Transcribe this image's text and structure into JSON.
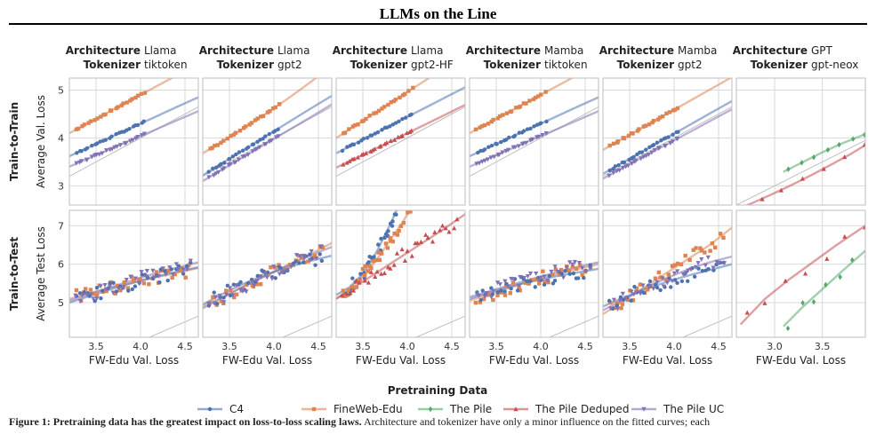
{
  "figure_title": "LLMs on the Line",
  "caption": {
    "lead": "Figure 1: Pretraining data has the greatest impact on loss-to-loss scaling laws.",
    "rest": "Architecture and tokenizer have only a minor influence on the fitted curves; each"
  },
  "colors": {
    "C4": "#4c72b0",
    "FineWeb-Edu": "#dd8452",
    "The Pile": "#55a868",
    "The Pile Deduped": "#c44e52",
    "The Pile UC": "#8172b3",
    "diagonal": "#b8b8b8",
    "panel_border": "#bdbdbd",
    "grid": "#d9d9d9"
  },
  "chart_data": {
    "type": "scatter",
    "facet_labels": {
      "architecture": "Architecture",
      "tokenizer": "Tokenizer"
    },
    "columns": [
      {
        "architecture": "Llama",
        "tokenizer": "tiktoken"
      },
      {
        "architecture": "Llama",
        "tokenizer": "gpt2"
      },
      {
        "architecture": "Llama",
        "tokenizer": "gpt2-HF"
      },
      {
        "architecture": "Mamba",
        "tokenizer": "tiktoken"
      },
      {
        "architecture": "Mamba",
        "tokenizer": "gpt2"
      },
      {
        "architecture": "GPT",
        "tokenizer": "gpt-neox"
      }
    ],
    "rows": [
      {
        "label": "Train-to-Train",
        "ylabel": "Average Val. Loss",
        "ylim": [
          2.6,
          5.25
        ],
        "yticks": [
          3,
          4,
          5
        ]
      },
      {
        "label": "Train-to-Test",
        "ylabel": "Average Test Loss",
        "ylim": [
          4.1,
          7.4
        ],
        "yticks": [
          5,
          6,
          7
        ]
      }
    ],
    "xlabel": "FW-Edu Val. Loss",
    "xlim_main": [
      3.2,
      4.65
    ],
    "xticks_main": [
      3.5,
      4.0,
      4.5
    ],
    "xlim_gpt": [
      2.6,
      3.95
    ],
    "xticks_gpt": [
      3.0,
      3.5
    ],
    "legend": {
      "title": "Pretraining Data",
      "position": "bottom",
      "entries": [
        "C4",
        "FineWeb-Edu",
        "The Pile",
        "The Pile Deduped",
        "The Pile UC"
      ]
    },
    "series_markers": {
      "C4": "circle",
      "FineWeb-Edu": "square",
      "The Pile": "diamond",
      "The Pile Deduped": "triangle-up",
      "The Pile UC": "triangle-down"
    },
    "fits": [
      [
        [
          {
            "name": "FineWeb-Edu",
            "x": [
              3.2,
              3.4,
              3.6,
              3.8,
              4.0,
              4.2,
              4.4,
              4.65
            ],
            "y": [
              4.1,
              4.3,
              4.5,
              4.7,
              4.9,
              5.1,
              5.3,
              5.55
            ]
          },
          {
            "name": "C4",
            "x": [
              3.2,
              3.4,
              3.6,
              3.8,
              4.0,
              4.2,
              4.4,
              4.65
            ],
            "y": [
              3.62,
              3.79,
              3.96,
              4.13,
              4.3,
              4.47,
              4.64,
              4.85
            ]
          },
          {
            "name": "The Pile UC",
            "x": [
              3.2,
              3.4,
              3.6,
              3.8,
              4.0,
              4.2,
              4.4,
              4.65
            ],
            "y": [
              3.4,
              3.56,
              3.72,
              3.88,
              4.04,
              4.2,
              4.36,
              4.56
            ]
          }
        ],
        [
          {
            "name": "FineWeb-Edu",
            "x": [
              3.2,
              3.4,
              3.6,
              3.8,
              4.0,
              4.2,
              4.4,
              4.65
            ],
            "y": [
              3.68,
              3.9,
              4.13,
              4.37,
              4.62,
              4.88,
              5.15,
              5.5
            ]
          },
          {
            "name": "C4",
            "x": [
              3.2,
              3.4,
              3.6,
              3.8,
              4.0,
              4.2,
              4.4,
              4.65
            ],
            "y": [
              3.22,
              3.45,
              3.68,
              3.91,
              4.14,
              4.37,
              4.6,
              4.88
            ]
          },
          {
            "name": "The Pile UC",
            "x": [
              3.2,
              3.4,
              3.6,
              3.8,
              4.0,
              4.2,
              4.4,
              4.65
            ],
            "y": [
              3.1,
              3.32,
              3.54,
              3.76,
              3.98,
              4.2,
              4.42,
              4.7
            ]
          }
        ],
        [
          {
            "name": "FineWeb-Edu",
            "x": [
              3.2,
              3.4,
              3.6,
              3.8,
              4.0,
              4.2,
              4.4,
              4.65
            ],
            "y": [
              4.0,
              4.24,
              4.48,
              4.72,
              4.96,
              5.2,
              5.44,
              5.74
            ]
          },
          {
            "name": "C4",
            "x": [
              3.2,
              3.4,
              3.6,
              3.8,
              4.0,
              4.2,
              4.4,
              4.65
            ],
            "y": [
              3.68,
              3.87,
              4.06,
              4.25,
              4.44,
              4.63,
              4.82,
              5.06
            ]
          },
          {
            "name": "The Pile Deduped",
            "x": [
              3.2,
              3.4,
              3.6,
              3.8,
              4.0,
              4.2,
              4.4,
              4.65
            ],
            "y": [
              3.38,
              3.56,
              3.74,
              3.92,
              4.1,
              4.28,
              4.46,
              4.69
            ]
          }
        ],
        [
          {
            "name": "FineWeb-Edu",
            "x": [
              3.2,
              3.4,
              3.6,
              3.8,
              4.0,
              4.2,
              4.4,
              4.65
            ],
            "y": [
              4.1,
              4.3,
              4.5,
              4.7,
              4.9,
              5.1,
              5.3,
              5.55
            ]
          },
          {
            "name": "C4",
            "x": [
              3.2,
              3.4,
              3.6,
              3.8,
              4.0,
              4.2,
              4.4,
              4.65
            ],
            "y": [
              3.62,
              3.79,
              3.96,
              4.13,
              4.3,
              4.47,
              4.64,
              4.85
            ]
          },
          {
            "name": "The Pile UC",
            "x": [
              3.2,
              3.4,
              3.6,
              3.8,
              4.0,
              4.2,
              4.4,
              4.65
            ],
            "y": [
              3.4,
              3.56,
              3.72,
              3.88,
              4.04,
              4.2,
              4.36,
              4.56
            ]
          }
        ],
        [
          {
            "name": "FineWeb-Edu",
            "x": [
              3.2,
              3.4,
              3.6,
              3.8,
              4.0,
              4.2,
              4.4,
              4.65
            ],
            "y": [
              3.75,
              3.96,
              4.17,
              4.38,
              4.59,
              4.8,
              5.01,
              5.27
            ]
          },
          {
            "name": "C4",
            "x": [
              3.2,
              3.4,
              3.6,
              3.8,
              4.0,
              4.2,
              4.4,
              4.65
            ],
            "y": [
              3.25,
              3.46,
              3.67,
              3.88,
              4.09,
              4.3,
              4.51,
              4.77
            ]
          },
          {
            "name": "The Pile UC",
            "x": [
              3.2,
              3.4,
              3.6,
              3.8,
              4.0,
              4.2,
              4.4,
              4.65
            ],
            "y": [
              3.15,
              3.35,
              3.55,
              3.75,
              3.95,
              4.15,
              4.35,
              4.6
            ]
          }
        ],
        [
          {
            "name": "The Pile",
            "x": [
              3.1,
              3.3,
              3.5,
              3.7,
              3.95
            ],
            "y": [
              3.3,
              3.5,
              3.7,
              3.88,
              4.08
            ]
          },
          {
            "name": "The Pile Deduped",
            "x": [
              2.6,
              2.8,
              3.0,
              3.2,
              3.4,
              3.6,
              3.8,
              3.95
            ],
            "y": [
              2.5,
              2.67,
              2.85,
              3.04,
              3.24,
              3.45,
              3.67,
              3.85
            ]
          }
        ]
      ],
      [
        [
          {
            "name": "FineWeb-Edu",
            "x": [
              3.2,
              3.4,
              3.6,
              3.8,
              4.0,
              4.2,
              4.4,
              4.65
            ],
            "y": [
              5.1,
              5.23,
              5.35,
              5.46,
              5.57,
              5.67,
              5.77,
              5.9
            ]
          },
          {
            "name": "C4",
            "x": [
              3.2,
              3.4,
              3.6,
              3.8,
              4.0,
              4.2,
              4.4,
              4.65
            ],
            "y": [
              5.0,
              5.15,
              5.3,
              5.44,
              5.57,
              5.69,
              5.8,
              5.92
            ]
          },
          {
            "name": "The Pile UC",
            "x": [
              3.2,
              3.4,
              3.6,
              3.8,
              4.0,
              4.2,
              4.4,
              4.65
            ],
            "y": [
              5.05,
              5.2,
              5.35,
              5.5,
              5.65,
              5.78,
              5.9,
              6.05
            ]
          }
        ],
        [
          {
            "name": "FineWeb-Edu",
            "x": [
              3.2,
              3.4,
              3.6,
              3.8,
              4.0,
              4.2,
              4.4,
              4.65
            ],
            "y": [
              4.9,
              5.12,
              5.35,
              5.58,
              5.8,
              6.02,
              6.25,
              6.55
            ]
          },
          {
            "name": "C4",
            "x": [
              3.2,
              3.4,
              3.6,
              3.8,
              4.0,
              4.2,
              4.4,
              4.65
            ],
            "y": [
              4.95,
              5.2,
              5.43,
              5.63,
              5.8,
              5.95,
              6.08,
              6.22
            ]
          },
          {
            "name": "The Pile UC",
            "x": [
              3.2,
              3.4,
              3.6,
              3.8,
              4.0,
              4.2,
              4.4,
              4.65
            ],
            "y": [
              4.85,
              5.1,
              5.35,
              5.58,
              5.8,
              6.02,
              6.22,
              6.45
            ]
          }
        ],
        [
          {
            "name": "C4",
            "x": [
              3.2,
              3.35,
              3.5,
              3.65,
              3.8,
              3.9
            ],
            "y": [
              5.2,
              5.4,
              5.75,
              6.3,
              7.0,
              7.5
            ]
          },
          {
            "name": "FineWeb-Edu",
            "x": [
              3.2,
              3.35,
              3.5,
              3.65,
              3.8,
              3.95,
              4.05
            ],
            "y": [
              5.1,
              5.35,
              5.7,
              6.1,
              6.6,
              7.1,
              7.5
            ]
          },
          {
            "name": "The Pile Deduped",
            "x": [
              3.2,
              3.5,
              3.8,
              4.1,
              4.4,
              4.65
            ],
            "y": [
              5.1,
              5.55,
              6.0,
              6.45,
              6.9,
              7.3
            ]
          }
        ],
        [
          {
            "name": "FineWeb-Edu",
            "x": [
              3.2,
              3.4,
              3.6,
              3.8,
              4.0,
              4.2,
              4.4,
              4.65
            ],
            "y": [
              5.05,
              5.2,
              5.35,
              5.5,
              5.63,
              5.75,
              5.87,
              6.0
            ]
          },
          {
            "name": "C4",
            "x": [
              3.2,
              3.4,
              3.6,
              3.8,
              4.0,
              4.2,
              4.4,
              4.65
            ],
            "y": [
              5.1,
              5.25,
              5.38,
              5.5,
              5.6,
              5.7,
              5.78,
              5.88
            ]
          },
          {
            "name": "The Pile UC",
            "x": [
              3.2,
              3.4,
              3.6,
              3.8,
              4.0,
              4.2,
              4.4,
              4.65
            ],
            "y": [
              5.15,
              5.28,
              5.42,
              5.55,
              5.68,
              5.8,
              5.92,
              6.05
            ]
          }
        ],
        [
          {
            "name": "FineWeb-Edu",
            "x": [
              3.2,
              3.4,
              3.6,
              3.8,
              4.0,
              4.2,
              4.4,
              4.65
            ],
            "y": [
              4.7,
              5.0,
              5.3,
              5.6,
              5.9,
              6.2,
              6.5,
              6.95
            ]
          },
          {
            "name": "C4",
            "x": [
              3.2,
              3.4,
              3.6,
              3.8,
              4.0,
              4.2,
              4.4,
              4.65
            ],
            "y": [
              4.9,
              5.1,
              5.28,
              5.45,
              5.6,
              5.73,
              5.85,
              6.0
            ]
          },
          {
            "name": "The Pile UC",
            "x": [
              3.2,
              3.4,
              3.6,
              3.8,
              4.0,
              4.2,
              4.4,
              4.65
            ],
            "y": [
              4.8,
              5.05,
              5.3,
              5.52,
              5.72,
              5.9,
              6.05,
              6.2
            ]
          }
        ],
        [
          {
            "name": "The Pile Deduped",
            "x": [
              2.65,
              2.9,
              3.15,
              3.4,
              3.65,
              3.95
            ],
            "y": [
              4.45,
              5.1,
              5.6,
              6.05,
              6.5,
              7.0
            ]
          },
          {
            "name": "The Pile",
            "x": [
              3.1,
              3.3,
              3.5,
              3.7,
              3.95
            ],
            "y": [
              4.4,
              4.9,
              5.35,
              5.8,
              6.35
            ]
          }
        ]
      ]
    ]
  }
}
